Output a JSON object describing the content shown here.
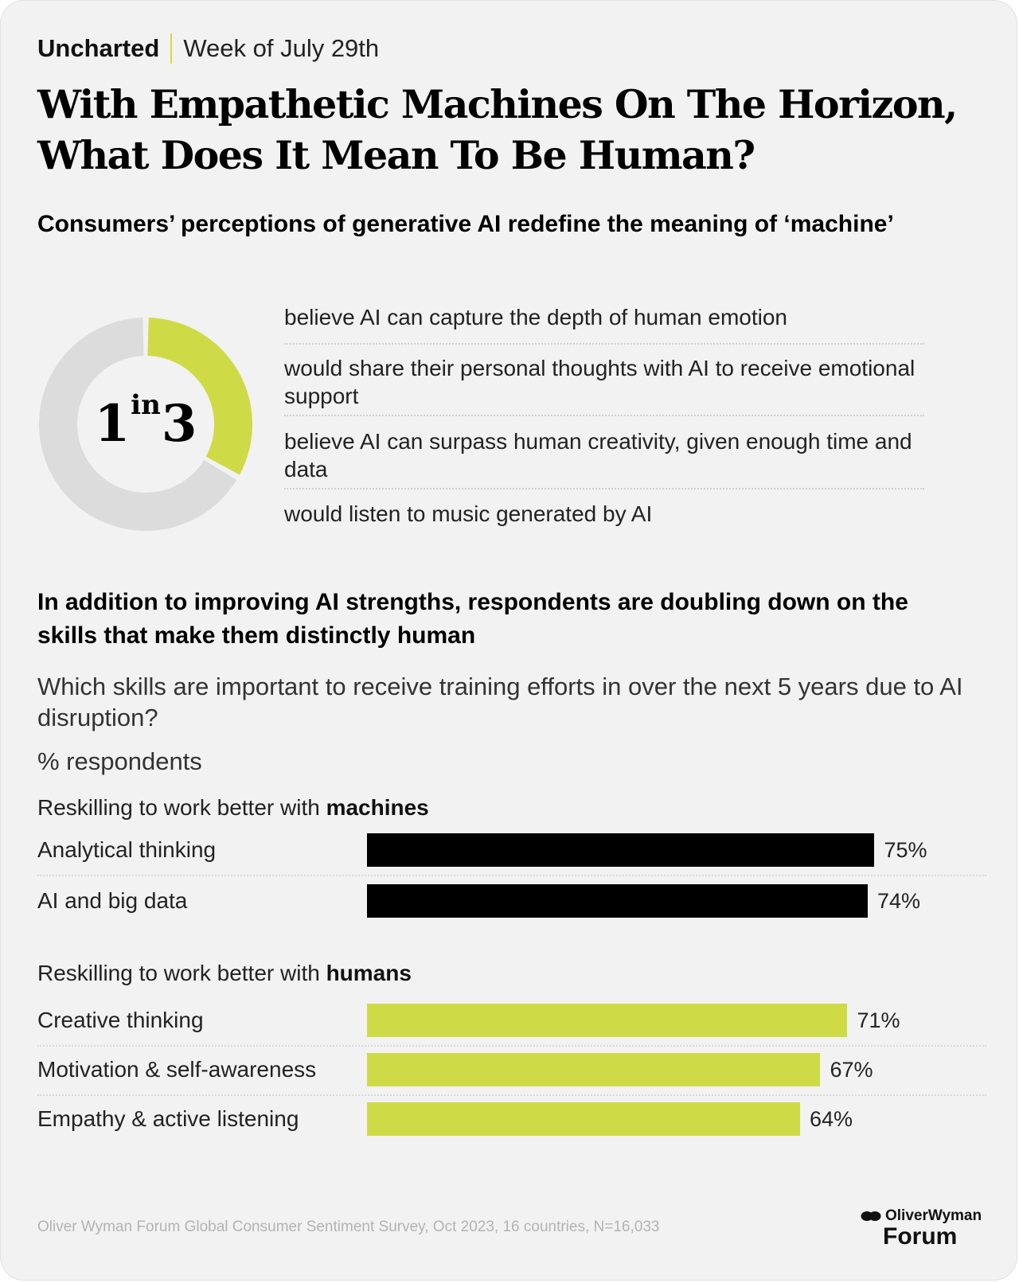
{
  "header": {
    "brand": "Uncharted",
    "week": "Week of July 29th"
  },
  "title": "With Empathetic Machines On The Horizon, What Does It Mean To Be Human?",
  "section1": {
    "heading": "Consumers’ perceptions of generative AI redefine the meaning of ‘machine’",
    "stat": {
      "num": "1",
      "in": "in",
      "den": "3",
      "fraction": 0.333
    },
    "items": [
      "believe AI can capture the depth of human emotion",
      "would share their personal thoughts with AI to receive emotional support",
      "believe AI can surpass human creativity, given enough time and data",
      "would listen to music generated by AI"
    ]
  },
  "section2": {
    "heading": "In addition to improving AI strengths, respondents are doubling down on the skills that make them distinctly human",
    "question": "Which skills are important to receive training efforts in over the next 5 years due to AI disruption?",
    "units": "% respondents"
  },
  "chart_data": {
    "type": "bar",
    "orientation": "horizontal",
    "unit": "%",
    "xlim": [
      0,
      100
    ],
    "groups": [
      {
        "label_prefix": "Reskilling to work better with ",
        "label_bold": "machines",
        "color": "#000000",
        "categories": [
          "Analytical thinking",
          "AI and big data"
        ],
        "values": [
          75,
          74
        ],
        "value_labels": [
          "75%",
          "74%"
        ]
      },
      {
        "label_prefix": "Reskilling to work better with ",
        "label_bold": "humans",
        "color": "#cedb47",
        "categories": [
          "Creative thinking",
          "Motivation & self-awareness",
          "Empathy & active listening"
        ],
        "values": [
          71,
          67,
          64
        ],
        "value_labels": [
          "71%",
          "67%",
          "64%"
        ]
      }
    ]
  },
  "colors": {
    "accent": "#cedb47",
    "donut_rest": "#dcdcdc",
    "card": "#f2f2f2"
  },
  "footer": {
    "source": "Oliver Wyman Forum Global Consumer Sentiment Survey, Oct 2023, 16 countries, N=16,033",
    "logo_top": "OliverWyman",
    "logo_bottom": "Forum"
  }
}
